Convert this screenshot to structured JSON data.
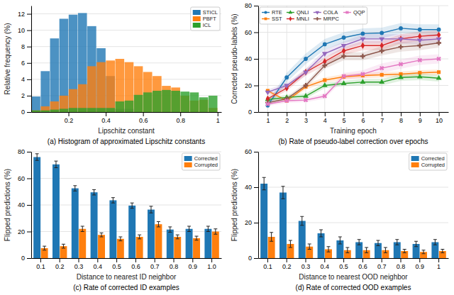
{
  "chart_data": [
    {
      "type": "histogram",
      "title": "(a) Histogram of approximated Lipschitz constants",
      "x_label": "Lipschitz constant",
      "y_label": "Relative frequency (%)",
      "bins": [
        0.0,
        0.05,
        0.1,
        0.15,
        0.2,
        0.25,
        0.3,
        0.35,
        0.4,
        0.45,
        0.5,
        0.55,
        0.6,
        0.65,
        0.7,
        0.75,
        0.8,
        0.85,
        0.9,
        0.95,
        1.0
      ],
      "series": [
        {
          "name": "STICL",
          "values": [
            1.9,
            5.0,
            9.0,
            11.4,
            11.9,
            12.1,
            10.5,
            7.8,
            4.4,
            0.4,
            0.4,
            0.0,
            0.0,
            0.0,
            0.0,
            0.0,
            0.0,
            0.0,
            0.0,
            0.0
          ]
        },
        {
          "name": "PBFT",
          "values": [
            0.2,
            0.7,
            1.3,
            2.0,
            2.8,
            3.4,
            5.6,
            6.1,
            6.3,
            6.5,
            6.1,
            5.6,
            4.9,
            4.4,
            3.2,
            3.0,
            2.0,
            1.4,
            1.5,
            0.5
          ]
        },
        {
          "name": "ICL",
          "values": [
            0.2,
            0.2,
            0.3,
            0.4,
            0.5,
            0.5,
            0.5,
            0.5,
            0.5,
            1.3,
            1.4,
            2.1,
            2.4,
            2.6,
            2.7,
            2.6,
            2.5,
            2.4,
            1.8,
            2.0
          ]
        }
      ],
      "xlim": [
        0.0,
        1.02
      ],
      "xticks": [
        0.2,
        0.4,
        0.6,
        0.8,
        1
      ],
      "ylim": [
        0,
        13
      ],
      "yticks": [
        0,
        2,
        4,
        6,
        8,
        10,
        12
      ],
      "grid": "y",
      "legend": "top-right"
    },
    {
      "type": "line",
      "title": "(b) Rate of pseudo-label correction over epochs",
      "x_label": "Training epoch",
      "y_label": "Corrected pseudo-labels (%)",
      "x": [
        1,
        2,
        3,
        4,
        5,
        6,
        7,
        8,
        9,
        10
      ],
      "series": [
        {
          "name": "RTE",
          "marker": "circle",
          "values": [
            5.0,
            26.0,
            40.0,
            51.0,
            56.0,
            59.0,
            59.5,
            63.0,
            62.0,
            62.0
          ],
          "std": [
            2.5,
            3.5,
            4.0,
            4.0,
            4.0,
            4.0,
            4.0,
            4.0,
            4.0,
            4.0
          ]
        },
        {
          "name": "SST",
          "marker": "square",
          "values": [
            16.0,
            8.5,
            19.0,
            24.0,
            26.5,
            27.5,
            28.0,
            28.5,
            29.5,
            30.0
          ],
          "std": [
            1.5,
            1.0,
            2.0,
            2.0,
            2.0,
            2.0,
            2.0,
            2.0,
            2.0,
            2.0
          ]
        },
        {
          "name": "QNLI",
          "marker": "triangle",
          "values": [
            9.5,
            11.0,
            12.0,
            20.0,
            21.5,
            22.5,
            22.5,
            26.0,
            26.5,
            25.5
          ],
          "std": [
            1.5,
            2.0,
            2.0,
            2.0,
            2.0,
            2.5,
            2.5,
            2.5,
            2.5,
            2.5
          ]
        },
        {
          "name": "MNLI",
          "marker": "diamond",
          "values": [
            10.0,
            18.0,
            30.0,
            38.0,
            46.0,
            50.0,
            50.0,
            55.0,
            57.0,
            58.0
          ],
          "std": [
            2.0,
            2.0,
            2.5,
            3.0,
            3.0,
            3.5,
            3.5,
            3.5,
            3.5,
            3.5
          ]
        },
        {
          "name": "COLA",
          "marker": "triangle-down",
          "values": [
            15.0,
            20.0,
            30.0,
            44.0,
            50.0,
            55.0,
            55.0,
            55.0,
            54.0,
            55.0
          ],
          "std": [
            2.0,
            2.0,
            2.5,
            3.0,
            3.0,
            3.5,
            3.5,
            3.5,
            3.5,
            3.5
          ]
        },
        {
          "name": "MRPC",
          "marker": "plus",
          "values": [
            7.0,
            10.0,
            20.0,
            35.0,
            42.0,
            42.0,
            46.0,
            49.0,
            50.0,
            52.0
          ],
          "std": [
            1.5,
            1.5,
            2.0,
            2.5,
            3.0,
            3.0,
            3.5,
            3.5,
            3.5,
            3.5
          ]
        },
        {
          "name": "QQP",
          "marker": "x",
          "values": [
            6.0,
            8.5,
            9.0,
            12.0,
            27.0,
            28.5,
            33.0,
            36.0,
            39.0,
            40.0
          ],
          "std": [
            1.5,
            1.5,
            1.5,
            2.0,
            2.5,
            3.0,
            3.5,
            3.5,
            3.5,
            3.5
          ]
        }
      ],
      "xlim": [
        0.5,
        10.5
      ],
      "xticks": [
        1,
        2,
        3,
        4,
        5,
        6,
        7,
        8,
        9,
        10
      ],
      "ylim": [
        0,
        80
      ],
      "yticks": [
        0,
        20,
        40,
        60,
        80
      ],
      "grid": true,
      "legend": "top-left"
    },
    {
      "type": "bar",
      "title": "(c) Rate of corrected ID examples",
      "x_label": "Distance to nearest ID neighbor",
      "y_label": "Flipped predictions (%)",
      "categories": [
        "0.1",
        "0.2",
        "0.3",
        "0.4",
        "0.5",
        "0.6",
        "0.7",
        "0.8",
        "0.9",
        "1.0"
      ],
      "series": [
        {
          "name": "Corrected",
          "values": [
            76.0,
            70.5,
            52.5,
            49.5,
            43.5,
            39.5,
            36.5,
            21.5,
            22.0,
            22.0
          ],
          "std": [
            2.5,
            2.5,
            2.0,
            2.0,
            2.0,
            2.0,
            2.5,
            2.0,
            2.0,
            2.0
          ]
        },
        {
          "name": "Corrupted",
          "values": [
            7.5,
            9.0,
            22.0,
            17.5,
            14.5,
            16.0,
            25.5,
            16.0,
            15.0,
            20.0
          ],
          "std": [
            1.5,
            1.5,
            2.0,
            1.5,
            1.5,
            1.5,
            2.0,
            1.5,
            1.5,
            2.0
          ]
        }
      ],
      "ylim": [
        0,
        80
      ],
      "yticks": [
        0,
        20,
        40,
        60,
        80
      ],
      "grid": "y",
      "legend": "top-right"
    },
    {
      "type": "bar",
      "title": "(d) Rate of corrected OOD examples",
      "x_label": "Distance to nearest OOD neighbor",
      "y_label": "Flipped predictions (%)",
      "categories": [
        "0.1",
        "0.2",
        "0.3",
        "0.4",
        "0.5",
        "0.6",
        "0.7",
        "0.8",
        "0.9",
        "1"
      ],
      "series": [
        {
          "name": "Corrected",
          "values": [
            42.0,
            37.0,
            21.0,
            14.0,
            10.0,
            9.0,
            8.5,
            9.0,
            8.0,
            9.0
          ],
          "std": [
            3.5,
            3.5,
            2.5,
            2.0,
            2.0,
            1.5,
            1.5,
            1.5,
            1.5,
            1.5
          ]
        },
        {
          "name": "Corrupted",
          "values": [
            12.0,
            8.0,
            6.5,
            5.0,
            4.5,
            4.5,
            4.5,
            4.0,
            3.5,
            4.0
          ],
          "std": [
            2.5,
            2.0,
            1.5,
            1.5,
            1.5,
            1.5,
            1.5,
            1.0,
            1.0,
            1.0
          ]
        }
      ],
      "ylim": [
        0,
        60
      ],
      "yticks": [
        0,
        20,
        40,
        60
      ],
      "grid": "y",
      "legend": "top-right"
    }
  ]
}
